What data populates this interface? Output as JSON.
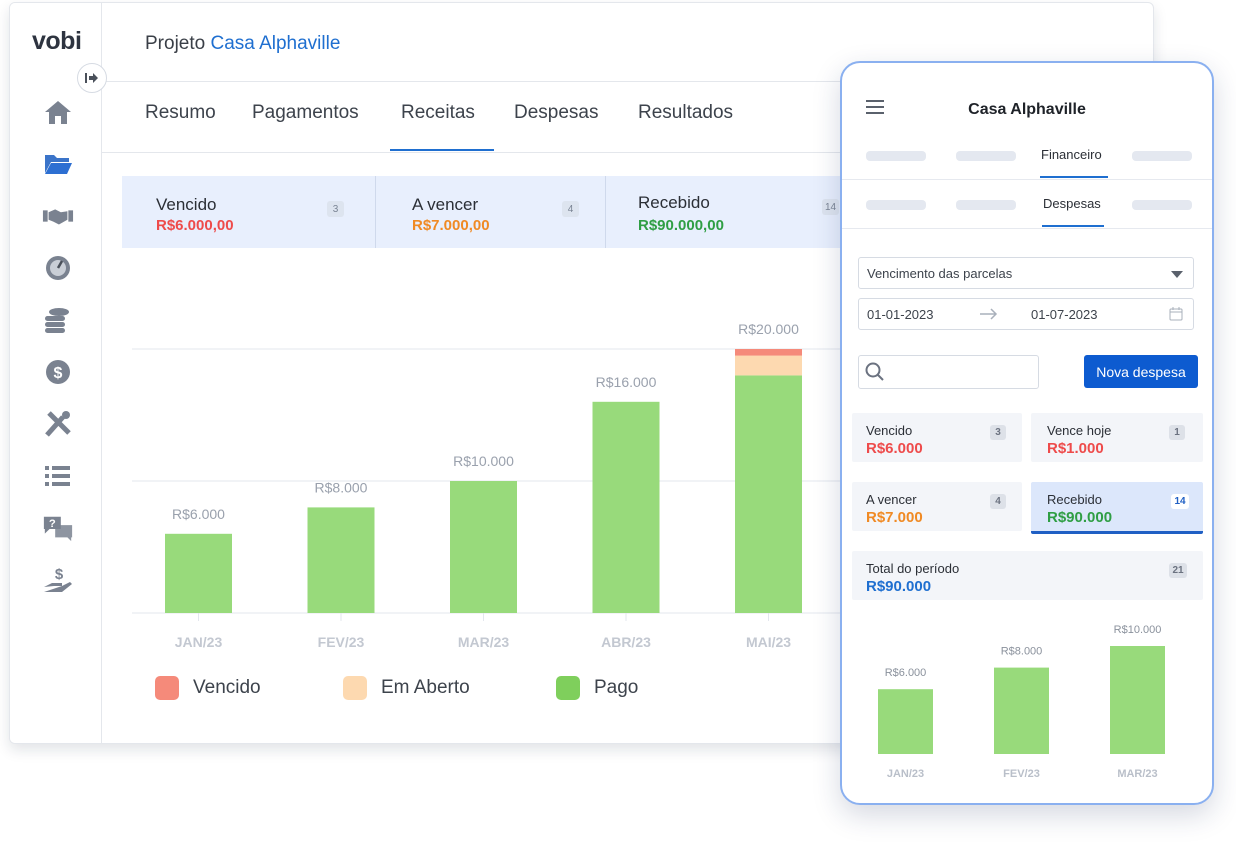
{
  "brand": "vobi",
  "project": {
    "prefix": "Projeto",
    "name": "Casa Alphaville"
  },
  "tabs": [
    "Resumo",
    "Pagamentos",
    "Receitas",
    "Despesas",
    "Resultados"
  ],
  "active_tab": "Receitas",
  "sidebar": {
    "items": [
      "home-icon",
      "folder-icon",
      "handshake-icon",
      "dashboard-gauge-icon",
      "coins-stack-icon",
      "dollar-circle-icon",
      "tools-icon",
      "list-icon",
      "help-chat-icon",
      "hand-money-icon"
    ]
  },
  "summary_cards": [
    {
      "label": "Vencido",
      "value": "R$6.000,00",
      "count": "3",
      "color": "#ee4b4b"
    },
    {
      "label": "A vencer",
      "value": "R$7.000,00",
      "count": "4",
      "color": "#f08a24"
    },
    {
      "label": "Recebido",
      "value": "R$90.000,00",
      "count": "14",
      "color": "#2f9e44"
    }
  ],
  "chart_data": {
    "type": "bar",
    "categories": [
      "JAN/23",
      "FEV/23",
      "MAR/23",
      "ABR/23",
      "MAI/23"
    ],
    "series": [
      {
        "name": "Vencido",
        "values": [
          0,
          0,
          0,
          0,
          500
        ],
        "color": "#f58a7a"
      },
      {
        "name": "Em Aberto",
        "values": [
          0,
          0,
          0,
          0,
          1500
        ],
        "color": "#fdd9b0"
      },
      {
        "name": "Pago",
        "values": [
          6000,
          8000,
          10000,
          16000,
          18000
        ],
        "color": "#98da7b"
      }
    ],
    "data_labels": [
      "R$6.000",
      "R$8.000",
      "R$10.000",
      "R$16.000",
      "R$20.000"
    ],
    "ylim": [
      0,
      20000
    ],
    "grid": true
  },
  "legend": [
    {
      "label": "Vencido",
      "color": "#f58a7a"
    },
    {
      "label": "Em Aberto",
      "color": "#fdd9b0"
    },
    {
      "label": "Pago",
      "color": "#7fcf5c"
    }
  ],
  "mobile": {
    "title": "Casa Alphaville",
    "tab1": "Financeiro",
    "tab2": "Despesas",
    "filter_select": "Vencimento das parcelas",
    "date_from": "01-01-2023",
    "date_to": "01-07-2023",
    "new_button": "Nova despesa",
    "cards": [
      {
        "label": "Vencido",
        "value": "R$6.000",
        "count": "3",
        "color": "#ee4b4b"
      },
      {
        "label": "Vence hoje",
        "value": "R$1.000",
        "count": "1",
        "color": "#ee4b4b"
      },
      {
        "label": "A vencer",
        "value": "R$7.000",
        "count": "4",
        "color": "#f08a24"
      },
      {
        "label": "Recebido",
        "value": "R$90.000",
        "count": "14",
        "color": "#2f9e44"
      }
    ],
    "total": {
      "label": "Total do período",
      "value": "R$90.000",
      "count": "21",
      "color": "#1f6fd0"
    },
    "chart_data": {
      "type": "bar",
      "categories": [
        "JAN/23",
        "FEV/23",
        "MAR/23"
      ],
      "values": [
        6000,
        8000,
        10000
      ],
      "data_labels": [
        "R$6.000",
        "R$8.000",
        "R$10.000"
      ],
      "ylim": [
        0,
        10000
      ],
      "color": "#98da7b"
    }
  }
}
